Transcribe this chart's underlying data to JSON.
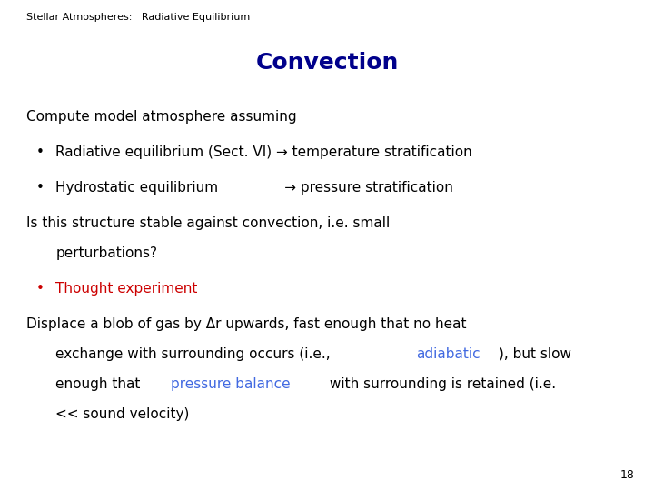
{
  "background_color": "#ffffff",
  "header_text": "Stellar Atmospheres:   Radiative Equilibrium",
  "header_fontsize": 8,
  "header_color": "#000000",
  "title": "Convection",
  "title_fontsize": 18,
  "title_color": "#00008B",
  "title_bold": true,
  "page_number": "18",
  "page_number_fontsize": 9,
  "page_number_color": "#000000",
  "body_fontsize": 11,
  "body_color": "#000000",
  "red_color": "#cc0000",
  "blue_color": "#4169E1",
  "font_family": "DejaVu Sans"
}
